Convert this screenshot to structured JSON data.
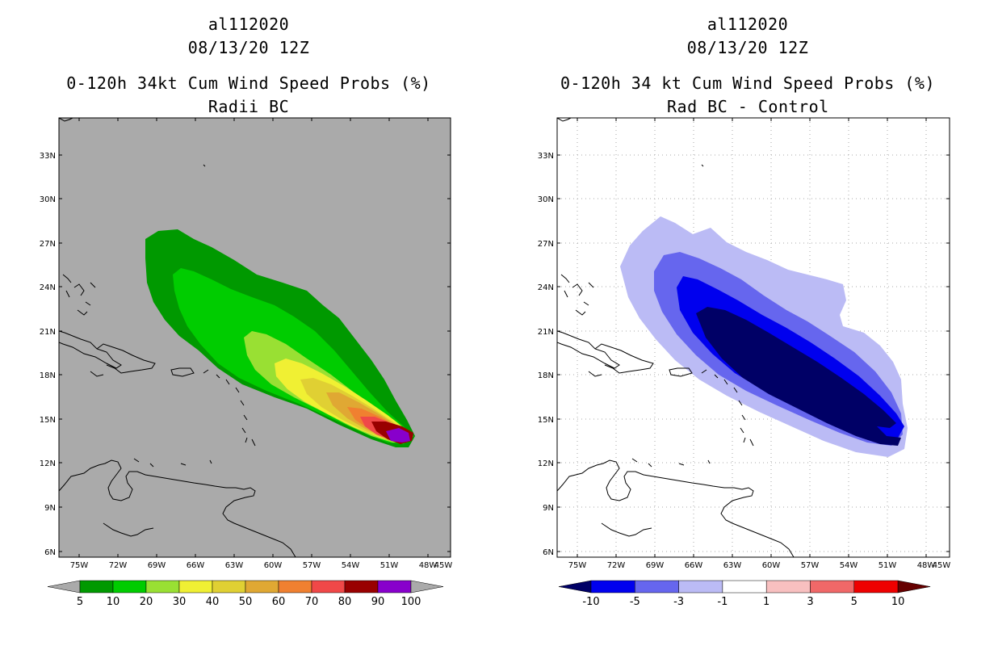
{
  "left_panel": {
    "storm_id": "al112020",
    "date": "08/13/20 12Z",
    "title": "0-120h 34kt Cum Wind Speed Probs (%)",
    "subtitle": "Radii BC",
    "colorbar": {
      "levels": [
        "5",
        "10",
        "20",
        "30",
        "40",
        "50",
        "60",
        "70",
        "80",
        "90",
        "100"
      ],
      "colors": [
        "#009900",
        "#00cc00",
        "#99e033",
        "#f0f033",
        "#e0d033",
        "#e0a833",
        "#f08030",
        "#f04848",
        "#990000",
        "#8800cc"
      ],
      "under_color": "#aaaaaa",
      "over_color": "#aaaaaa"
    }
  },
  "right_panel": {
    "storm_id": "al112020",
    "date": "08/13/20 12Z",
    "title": "0-120h 34 kt Cum Wind Speed Probs (%)",
    "subtitle": "Rad BC - Control",
    "colorbar": {
      "levels": [
        "-10",
        "-5",
        "-3",
        "-1",
        "1",
        "3",
        "5",
        "10"
      ],
      "colors": [
        "#0000ee",
        "#6666ee",
        "#bbbbf5",
        "#ffffff",
        "#f8c0c0",
        "#f06868",
        "#ee0000"
      ],
      "under_color": "#000066",
      "over_color": "#660000"
    }
  },
  "axes": {
    "lat_labels": [
      "33N",
      "30N",
      "27N",
      "24N",
      "21N",
      "18N",
      "15N",
      "12N",
      "9N",
      "6N"
    ],
    "lon_labels": [
      "75W",
      "72W",
      "69W",
      "66W",
      "63W",
      "60W",
      "57W",
      "54W",
      "51W",
      "48W",
      "45W"
    ]
  },
  "colors": {
    "background_left": "#aaaaaa",
    "background_right": "#ffffff",
    "gridline": "#aaaaaa"
  }
}
